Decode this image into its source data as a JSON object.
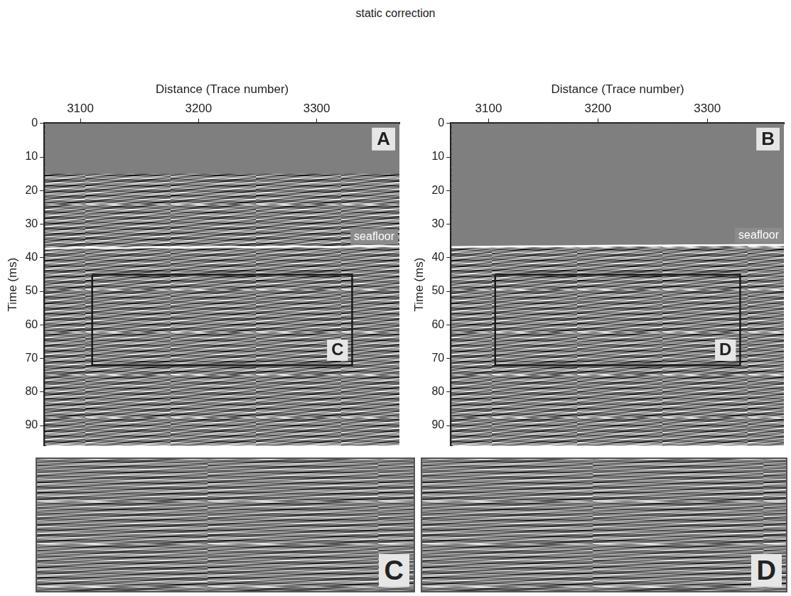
{
  "title": "static correction",
  "chart_data": [
    {
      "type": "line",
      "panel": "A",
      "x_label": "Distance (Trace number)",
      "y_label": "Time (ms)",
      "xlim": [
        3070,
        3370
      ],
      "xticks": [
        3100,
        3200,
        3300
      ],
      "ylim": [
        0,
        96
      ],
      "yticks": [
        0,
        10,
        20,
        30,
        40,
        50,
        60,
        70,
        80,
        90
      ],
      "grid": false,
      "muted_zone": [
        0,
        15
      ],
      "seafloor": {
        "label": "seafloor",
        "color": "#ffffff",
        "x": [
          3070,
          3100,
          3130,
          3160,
          3190,
          3220,
          3250,
          3280,
          3310,
          3340,
          3370
        ],
        "values": [
          37.3,
          37.0,
          37.2,
          36.8,
          37.0,
          36.7,
          36.9,
          36.6,
          36.8,
          36.5,
          36.6
        ]
      },
      "box": {
        "label": "C",
        "color": "#1a1a1a",
        "x": [
          3110,
          3330
        ],
        "y": [
          45,
          72
        ]
      }
    },
    {
      "type": "line",
      "panel": "B",
      "x_label": "Distance (Trace number)",
      "y_label": "Time (ms)",
      "xlim": [
        3066,
        3370
      ],
      "xticks": [
        3100,
        3200,
        3300
      ],
      "ylim": [
        0,
        96
      ],
      "yticks": [
        0,
        10,
        20,
        30,
        40,
        50,
        60,
        70,
        80,
        90
      ],
      "grid": false,
      "mute_above_seafloor": true,
      "seafloor": {
        "label": "seafloor",
        "color": "#ffffff",
        "x": [
          3066,
          3100,
          3130,
          3160,
          3190,
          3220,
          3250,
          3280,
          3310,
          3340,
          3370
        ],
        "values": [
          36.8,
          36.7,
          36.6,
          36.6,
          36.5,
          36.4,
          36.4,
          36.3,
          36.3,
          36.2,
          36.2
        ]
      },
      "box": {
        "label": "D",
        "color": "#1a1a1a",
        "x": [
          3106,
          3330
        ],
        "y": [
          45,
          72
        ]
      }
    }
  ],
  "insets": [
    {
      "label": "C"
    },
    {
      "label": "D"
    }
  ]
}
